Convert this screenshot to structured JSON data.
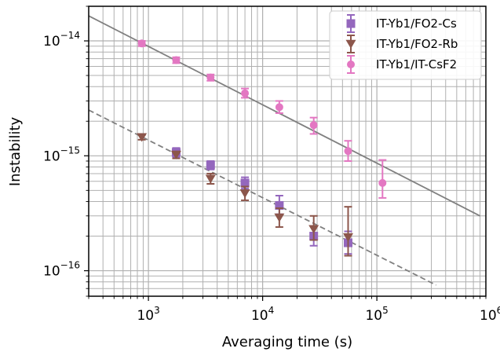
{
  "chart_data": {
    "type": "scatter",
    "title": "",
    "xlabel": "Averaging time (s)",
    "ylabel": "Instability",
    "xscale": "log",
    "yscale": "log",
    "xlim": [
      300,
      900000
    ],
    "ylim": [
      6e-17,
      2e-14
    ],
    "grid": true,
    "legend_position": "top-right",
    "x_ticks": [
      {
        "value": 1000,
        "base": "10",
        "exp": "3"
      },
      {
        "value": 10000,
        "base": "10",
        "exp": "4"
      },
      {
        "value": 100000,
        "base": "10",
        "exp": "5"
      },
      {
        "value": 1000000,
        "base": "10",
        "exp": "6"
      }
    ],
    "y_ticks": [
      {
        "value": 1e-16,
        "base": "10",
        "exp": "−16"
      },
      {
        "value": 1e-15,
        "base": "10",
        "exp": "−15"
      },
      {
        "value": 1e-14,
        "base": "10",
        "exp": "−14"
      }
    ],
    "series": [
      {
        "name": "IT-Yb1/FO2-Cs",
        "marker": "square",
        "color": "#9467bd",
        "points": [
          {
            "x": 1750,
            "y": 1.07e-15,
            "lo": 9.7e-16,
            "hi": 1.17e-15
          },
          {
            "x": 3500,
            "y": 8.3e-16,
            "lo": 7.6e-16,
            "hi": 9e-16
          },
          {
            "x": 7000,
            "y": 5.8e-16,
            "lo": 5.2e-16,
            "hi": 6.5e-16
          },
          {
            "x": 14000,
            "y": 3.7e-16,
            "lo": 3.1e-16,
            "hi": 4.5e-16
          },
          {
            "x": 28000,
            "y": 2e-16,
            "lo": 1.65e-16,
            "hi": 2.45e-16
          },
          {
            "x": 56000,
            "y": 1.75e-16,
            "lo": 1.4e-16,
            "hi": 2.2e-16
          }
        ]
      },
      {
        "name": "IT-Yb1/FO2-Rb",
        "marker": "triangle-down",
        "color": "#8c564b",
        "points": [
          {
            "x": 875,
            "y": 1.45e-15,
            "lo": 1.38e-15,
            "hi": 1.52e-15
          },
          {
            "x": 1750,
            "y": 1.02e-15,
            "lo": 9.5e-16,
            "hi": 1.09e-15
          },
          {
            "x": 3500,
            "y": 6.3e-16,
            "lo": 5.7e-16,
            "hi": 7e-16
          },
          {
            "x": 7000,
            "y": 4.7e-16,
            "lo": 4.1e-16,
            "hi": 5.4e-16
          },
          {
            "x": 14000,
            "y": 2.9e-16,
            "lo": 2.4e-16,
            "hi": 3.5e-16
          },
          {
            "x": 28000,
            "y": 2.3e-16,
            "lo": 1.85e-16,
            "hi": 3e-16
          },
          {
            "x": 56000,
            "y": 1.95e-16,
            "lo": 1.35e-16,
            "hi": 3.6e-16
          }
        ]
      },
      {
        "name": "IT-Yb1/IT-CsF2",
        "marker": "circle",
        "color": "#e377c2",
        "points": [
          {
            "x": 875,
            "y": 9.5e-15,
            "lo": 9e-15,
            "hi": 1e-14
          },
          {
            "x": 1750,
            "y": 6.8e-15,
            "lo": 6.4e-15,
            "hi": 7.2e-15
          },
          {
            "x": 3500,
            "y": 4.8e-15,
            "lo": 4.5e-15,
            "hi": 5.1e-15
          },
          {
            "x": 7000,
            "y": 3.5e-15,
            "lo": 3.2e-15,
            "hi": 3.85e-15
          },
          {
            "x": 14000,
            "y": 2.65e-15,
            "lo": 2.35e-15,
            "hi": 3e-15
          },
          {
            "x": 28000,
            "y": 1.85e-15,
            "lo": 1.55e-15,
            "hi": 2.15e-15
          },
          {
            "x": 56000,
            "y": 1.1e-15,
            "lo": 9e-16,
            "hi": 1.35e-15
          },
          {
            "x": 112000,
            "y": 5.8e-16,
            "lo": 4.3e-16,
            "hi": 9.2e-16
          }
        ]
      }
    ],
    "fit_lines": [
      {
        "style": "solid",
        "color": "#808080",
        "x": [
          300,
          800000
        ],
        "y": [
          1.65e-14,
          3e-16
        ]
      },
      {
        "style": "dashed",
        "color": "#808080",
        "x": [
          300,
          330000
        ],
        "y": [
          2.5e-15,
          7.5e-17
        ]
      }
    ]
  }
}
